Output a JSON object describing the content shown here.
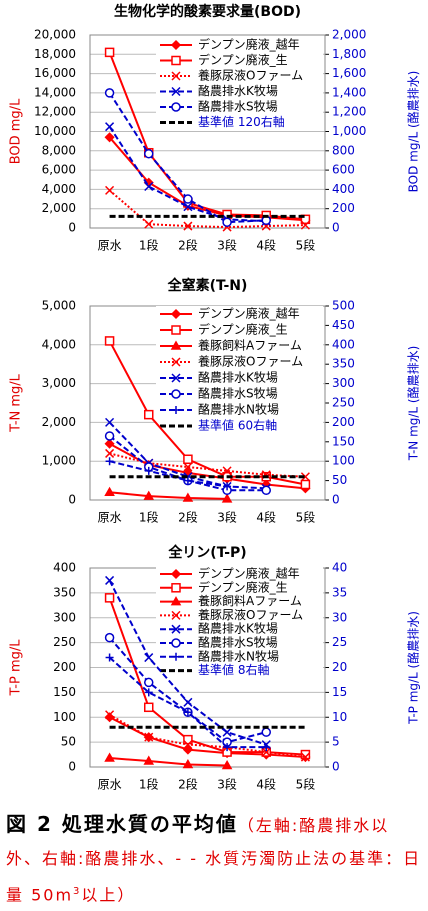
{
  "chart_data": [
    {
      "type": "line",
      "title": "生物化学的酸素要求量(BOD)",
      "ylabel": "BOD mg/L",
      "y2label": "BOD mg/L (酪農排水)",
      "categories": [
        "原水",
        "1段",
        "2段",
        "3段",
        "4段",
        "5段"
      ],
      "ylim": [
        0,
        20000
      ],
      "yticks": [
        0,
        {
          "value": 2000,
          "label": "2,000"
        },
        {
          "value": 4000,
          "label": "4,000"
        },
        {
          "value": 6000,
          "label": "6,000"
        },
        {
          "value": 8000,
          "label": "8,000"
        },
        {
          "value": 10000,
          "label": "10,000"
        },
        {
          "value": 12000,
          "label": "12,000"
        },
        {
          "value": 14000,
          "label": "14,000"
        },
        {
          "value": 16000,
          "label": "16,000"
        },
        {
          "value": 18000,
          "label": "18,000"
        },
        {
          "value": 20000,
          "label": "20,000"
        }
      ],
      "y2lim": [
        0,
        2000
      ],
      "y2ticks": [
        0,
        200,
        400,
        600,
        800,
        {
          "value": 1000,
          "label": "1,000"
        },
        {
          "value": 1200,
          "label": "1,200"
        },
        {
          "value": 1400,
          "label": "1,400"
        },
        {
          "value": 1600,
          "label": "1,600"
        },
        {
          "value": 1800,
          "label": "1,800"
        },
        {
          "value": 2000,
          "label": "2,000"
        }
      ],
      "grid": true,
      "series": [
        {
          "name": "デンプン廃液_越年",
          "color": "#ff0000",
          "marker": "diamond",
          "dash": "solid",
          "values": [
            9400,
            4700,
            2300,
            1300,
            1100,
            800
          ]
        },
        {
          "name": "デンプン廃液_生",
          "color": "#ff0000",
          "marker": "square",
          "dash": "solid",
          "values": [
            18200,
            7800,
            2600,
            1400,
            1300,
            900
          ]
        },
        {
          "name": "養豚尿液Oファーム",
          "color": "#ff0000",
          "marker": "x",
          "dash": "dotted",
          "values": [
            3900,
            400,
            200,
            100,
            200,
            300
          ]
        },
        {
          "name": "酪農排水K牧場",
          "color": "#0000cc",
          "marker": "x",
          "dash": "dashed",
          "axis": "y2",
          "values": [
            1050,
            430,
            220,
            90,
            70,
            null
          ]
        },
        {
          "name": "酪農排水S牧場",
          "color": "#0000cc",
          "marker": "circle",
          "dash": "dashed",
          "axis": "y2",
          "values": [
            1400,
            770,
            300,
            60,
            80,
            null
          ]
        },
        {
          "name": "基準値 120右軸",
          "color": "#000000",
          "marker": "none",
          "dash": "dashed",
          "line_width": 3,
          "label_color": "#0000cc",
          "axis": "y2",
          "values": [
            120,
            120,
            120,
            120,
            120,
            120
          ]
        }
      ]
    },
    {
      "type": "line",
      "title": "全窒素(T-N)",
      "ylabel": "T-N mg/L",
      "y2label": "T-N mg/L (酪農排水)",
      "categories": [
        "原水",
        "1段",
        "2段",
        "3段",
        "4段",
        "5段"
      ],
      "ylim": [
        0,
        5000
      ],
      "yticks": [
        0,
        {
          "value": 1000,
          "label": "1,000"
        },
        {
          "value": 2000,
          "label": "2,000"
        },
        {
          "value": 3000,
          "label": "3,000"
        },
        {
          "value": 4000,
          "label": "4,000"
        },
        {
          "value": 5000,
          "label": "5,000"
        }
      ],
      "y2lim": [
        0,
        500
      ],
      "y2ticks": [
        0,
        50,
        100,
        150,
        200,
        250,
        300,
        350,
        400,
        450,
        500
      ],
      "grid": true,
      "series": [
        {
          "name": "デンプン廃液_越年",
          "color": "#ff0000",
          "marker": "diamond",
          "dash": "solid",
          "values": [
            1450,
            900,
            700,
            550,
            400,
            300
          ]
        },
        {
          "name": "デンプン廃液_生",
          "color": "#ff0000",
          "marker": "square",
          "dash": "solid",
          "values": [
            4100,
            2200,
            1050,
            600,
            600,
            400
          ]
        },
        {
          "name": "養豚飼料Aファーム",
          "color": "#ff0000",
          "marker": "triangle",
          "dash": "solid",
          "values": [
            200,
            100,
            50,
            30,
            null,
            null
          ]
        },
        {
          "name": "養豚尿液Oファーム",
          "color": "#ff0000",
          "marker": "x",
          "dash": "dotted",
          "values": [
            1200,
            950,
            850,
            750,
            650,
            600
          ]
        },
        {
          "name": "酪農排水K牧場",
          "color": "#0000cc",
          "marker": "x",
          "dash": "dashed",
          "axis": "y2",
          "values": [
            200,
            95,
            60,
            35,
            30,
            null
          ]
        },
        {
          "name": "酪農排水S牧場",
          "color": "#0000cc",
          "marker": "circle",
          "dash": "dashed",
          "axis": "y2",
          "values": [
            165,
            85,
            50,
            25,
            25,
            null
          ]
        },
        {
          "name": "酪農排水N牧場",
          "color": "#0000cc",
          "marker": "plus",
          "dash": "dashed",
          "axis": "y2",
          "values": [
            100,
            75,
            50,
            35,
            null,
            null
          ]
        },
        {
          "name": "基準値 60右軸",
          "color": "#000000",
          "marker": "none",
          "dash": "dashed",
          "line_width": 3,
          "label_color": "#0000cc",
          "axis": "y2",
          "values": [
            60,
            60,
            60,
            60,
            60,
            60
          ]
        }
      ]
    },
    {
      "type": "line",
      "title": "全リン(T-P)",
      "ylabel": "T-P mg/L",
      "y2label": "T-P mg/L (酪農排水)",
      "categories": [
        "原水",
        "1段",
        "2段",
        "3段",
        "4段",
        "5段"
      ],
      "ylim": [
        0,
        400
      ],
      "yticks": [
        0,
        50,
        100,
        150,
        200,
        250,
        300,
        350,
        400
      ],
      "y2lim": [
        0,
        40
      ],
      "y2ticks": [
        0,
        5,
        10,
        15,
        20,
        25,
        30,
        35,
        40
      ],
      "grid": true,
      "series": [
        {
          "name": "デンプン廃液_越年",
          "color": "#ff0000",
          "marker": "diamond",
          "dash": "solid",
          "values": [
            100,
            60,
            35,
            28,
            25,
            20
          ]
        },
        {
          "name": "デンプン廃液_生",
          "color": "#ff0000",
          "marker": "square",
          "dash": "solid",
          "values": [
            340,
            120,
            55,
            30,
            30,
            25
          ]
        },
        {
          "name": "養豚飼料Aファーム",
          "color": "#ff0000",
          "marker": "triangle",
          "dash": "solid",
          "values": [
            18,
            12,
            5,
            3,
            null,
            null
          ]
        },
        {
          "name": "養豚尿液Oファーム",
          "color": "#ff0000",
          "marker": "x",
          "dash": "dotted",
          "values": [
            105,
            60,
            45,
            40,
            30,
            20
          ]
        },
        {
          "name": "酪農排水K牧場",
          "color": "#0000cc",
          "marker": "x",
          "dash": "dashed",
          "axis": "y2",
          "values": [
            37.5,
            22,
            13,
            7,
            4.5,
            null
          ]
        },
        {
          "name": "酪農排水S牧場",
          "color": "#0000cc",
          "marker": "circle",
          "dash": "dashed",
          "axis": "y2",
          "values": [
            26,
            17,
            11,
            5,
            7,
            null
          ]
        },
        {
          "name": "酪農排水N牧場",
          "color": "#0000cc",
          "marker": "plus",
          "dash": "dashed",
          "axis": "y2",
          "values": [
            22,
            15,
            11,
            4,
            4,
            null
          ]
        },
        {
          "name": "基準値 8右軸",
          "color": "#000000",
          "marker": "none",
          "dash": "dashed",
          "line_width": 3,
          "label_color": "#0000cc",
          "axis": "y2",
          "values": [
            8,
            8,
            8,
            8,
            8,
            8
          ]
        }
      ]
    }
  ],
  "caption": {
    "label": "図 2 処理水質の平均値",
    "note": "（左軸:酪農排水以外、右軸:酪農排水、- - 水質汚濁防止法の基準：日量 50m",
    "note_sup": "3",
    "note_end": "以上）"
  }
}
